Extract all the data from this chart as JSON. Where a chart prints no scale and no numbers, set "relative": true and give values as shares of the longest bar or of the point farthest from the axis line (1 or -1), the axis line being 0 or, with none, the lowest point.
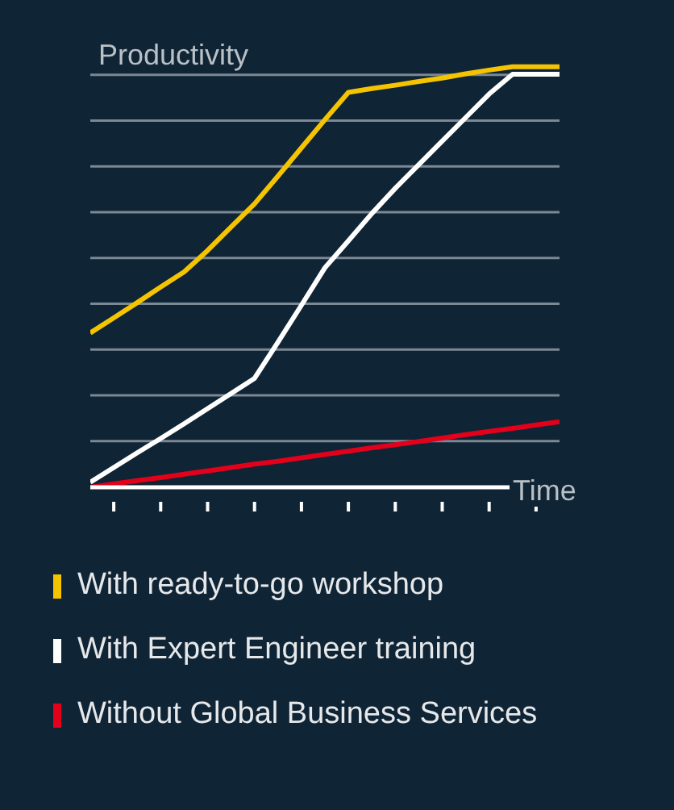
{
  "chart_data": {
    "type": "line",
    "relative": true,
    "xlabel": "Time",
    "ylabel": "Productivity",
    "categories": [
      null,
      null,
      null,
      null,
      null,
      null,
      null,
      null,
      null,
      null,
      null,
      null,
      null,
      null,
      null,
      null,
      null,
      null,
      null,
      null,
      null
    ],
    "grid": "y",
    "legend": "bottom",
    "marker": "none",
    "line_style": "solid",
    "series": [
      {
        "name": "With ready-to-go workshop",
        "color": "#f5c400",
        "values": [
          0.367,
          0.403,
          0.439,
          0.476,
          0.512,
          0.563,
          0.619,
          0.674,
          0.74,
          0.807,
          0.874,
          0.939,
          0.948,
          0.956,
          0.965,
          0.973,
          0.983,
          0.992,
          1,
          1,
          1
        ]
      },
      {
        "name": "With Expert Engineer training",
        "color": "#ffffff",
        "values": [
          0.012,
          0.047,
          0.082,
          0.116,
          0.151,
          0.187,
          0.223,
          0.259,
          0.345,
          0.433,
          0.522,
          0.586,
          0.651,
          0.711,
          0.767,
          0.823,
          0.879,
          0.935,
          0.982,
          0.982,
          0.982
        ]
      },
      {
        "name": "Without Global Business Services",
        "color": "#e3001b",
        "values": [
          0,
          0.008,
          0.016,
          0.023,
          0.031,
          0.039,
          0.047,
          0.055,
          0.062,
          0.07,
          0.078,
          0.086,
          0.094,
          0.101,
          0.109,
          0.117,
          0.125,
          0.133,
          0.14,
          0.148,
          0.156
        ]
      }
    ]
  }
}
